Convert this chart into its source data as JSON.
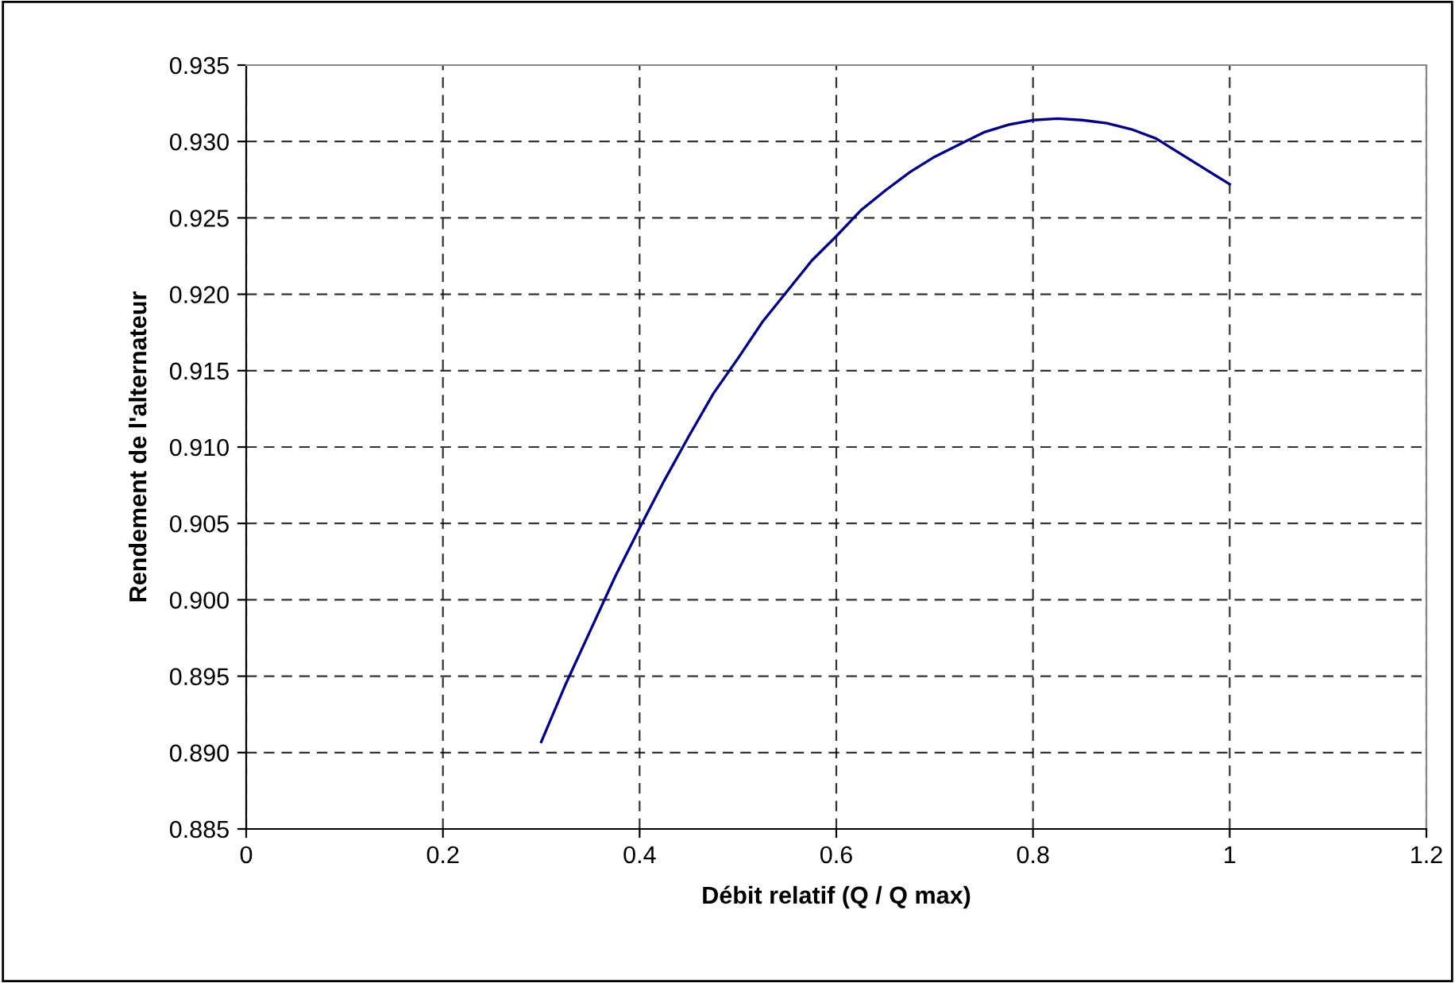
{
  "chart_data": {
    "type": "line",
    "xlabel": "Débit relatif (Q / Q max)",
    "ylabel": "Rendement de l'alternateur",
    "x": [
      0.3,
      0.325,
      0.35,
      0.375,
      0.4,
      0.425,
      0.45,
      0.475,
      0.5,
      0.525,
      0.55,
      0.575,
      0.6,
      0.625,
      0.65,
      0.675,
      0.7,
      0.725,
      0.75,
      0.775,
      0.8,
      0.825,
      0.85,
      0.875,
      0.9,
      0.925,
      0.95,
      0.975,
      1.0
    ],
    "series": [
      {
        "color": "#000080",
        "values": [
          0.8907,
          0.8945,
          0.898,
          0.9015,
          0.9047,
          0.9078,
          0.9107,
          0.9135,
          0.9158,
          0.9182,
          0.9202,
          0.9222,
          0.9238,
          0.9255,
          0.9268,
          0.928,
          0.929,
          0.9298,
          0.9306,
          0.9311,
          0.9314,
          0.9315,
          0.9314,
          0.9312,
          0.9308,
          0.9302,
          0.9292,
          0.9282,
          0.9272
        ]
      }
    ],
    "xlim": [
      0,
      1.2
    ],
    "xticks": [
      0,
      0.2,
      0.4,
      0.6,
      0.8,
      1,
      1.2
    ],
    "ylim": [
      0.885,
      0.935
    ],
    "yticks": [
      {
        "value": 0.885,
        "label": "0.885"
      },
      {
        "value": 0.89,
        "label": "0.890"
      },
      {
        "value": 0.895,
        "label": "0.895"
      },
      {
        "value": 0.9,
        "label": "0.900"
      },
      {
        "value": 0.905,
        "label": "0.905"
      },
      {
        "value": 0.91,
        "label": "0.910"
      },
      {
        "value": 0.915,
        "label": "0.915"
      },
      {
        "value": 0.92,
        "label": "0.920"
      },
      {
        "value": 0.925,
        "label": "0.925"
      },
      {
        "value": 0.93,
        "label": "0.930"
      },
      {
        "value": 0.935,
        "label": "0.935"
      }
    ],
    "grid": true,
    "marker": "none",
    "line_style": "solid"
  }
}
